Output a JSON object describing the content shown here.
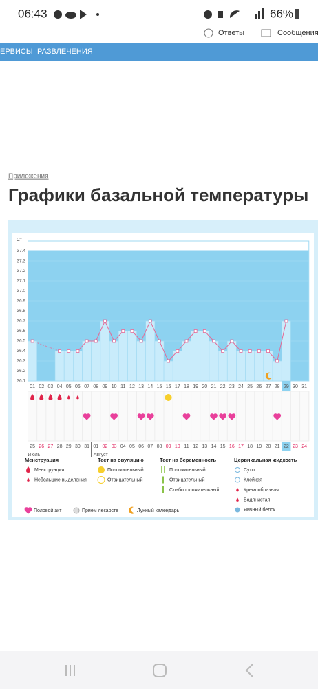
{
  "status_bar": {
    "time": "06:43",
    "battery": "66%"
  },
  "header": {
    "links": [
      "Ответы",
      "Сообщения"
    ]
  },
  "nav": {
    "items": [
      "ЕРВИСЫ",
      "РАЗВЛЕЧЕНИЯ"
    ]
  },
  "breadcrumb": "Приложения",
  "title": "Графики базальной температуры",
  "chart_data": {
    "type": "line",
    "y_label": "C°",
    "categories": [
      "01",
      "02",
      "03",
      "04",
      "05",
      "06",
      "07",
      "08",
      "09",
      "10",
      "11",
      "12",
      "13",
      "14",
      "15",
      "16",
      "17",
      "18",
      "19",
      "20",
      "21",
      "22",
      "23",
      "24",
      "25",
      "26",
      "27",
      "28",
      "29",
      "30",
      "31"
    ],
    "highlight": "29",
    "values": [
      36.5,
      null,
      null,
      36.4,
      36.4,
      36.4,
      36.5,
      36.5,
      36.7,
      36.5,
      36.6,
      36.6,
      36.5,
      36.7,
      36.5,
      36.3,
      36.4,
      36.5,
      36.6,
      36.6,
      36.5,
      36.4,
      36.5,
      36.4,
      36.4,
      36.4,
      36.4,
      36.3,
      36.7,
      null,
      null
    ],
    "ylim": [
      36.1,
      37.5
    ],
    "yticks": [
      36.1,
      36.2,
      36.3,
      36.4,
      36.5,
      36.6,
      36.7,
      36.8,
      36.9,
      {
        "value": 37,
        "label": "37.0"
      },
      37.1,
      37.2,
      37.3,
      37.4
    ],
    "color": "#e46a96",
    "bar_color": "#c9ecfb",
    "bg_color": "#8dd2f0",
    "dates": [
      "25",
      "26",
      "27",
      "28",
      "29",
      "30",
      "31",
      "01",
      "02",
      "03",
      "04",
      "05",
      "06",
      "07",
      "08",
      "09",
      "10",
      "11",
      "12",
      "13",
      "14",
      "15",
      "16",
      "17",
      "18",
      "19",
      "20",
      "21",
      "22",
      "23",
      "24"
    ],
    "dates_red": [
      false,
      true,
      true,
      false,
      false,
      false,
      false,
      false,
      true,
      true,
      false,
      false,
      false,
      false,
      false,
      true,
      true,
      false,
      false,
      false,
      false,
      false,
      true,
      true,
      false,
      false,
      false,
      false,
      false,
      true,
      true
    ],
    "dates_highlight": "22",
    "months": [
      "Июль",
      "Август"
    ],
    "legend": [
      {
        "title": "Менструация",
        "items": [
          {
            "label": "Менструация",
            "days": [
              "01",
              "02",
              "03",
              "04"
            ]
          },
          {
            "label": "Небольшие выделения",
            "days": [
              "05",
              "06"
            ]
          }
        ]
      },
      {
        "title": "Тест на овуляцию",
        "items": [
          {
            "label": "Положительный",
            "days": [
              "16"
            ]
          },
          {
            "label": "Отрицательный",
            "days": []
          }
        ]
      },
      {
        "title": "Тест на беременность",
        "items": [
          {
            "label": "Положительный",
            "days": []
          },
          {
            "label": "Отрицательный",
            "days": []
          },
          {
            "label": "Слабоположительный",
            "days": []
          }
        ]
      },
      {
        "title": "Цервикальная жидкость",
        "items": [
          {
            "label": "Сухо",
            "days": []
          },
          {
            "label": "Клейкая",
            "days": []
          },
          {
            "label": "Кремообразная",
            "days": []
          },
          {
            "label": "Водянистая",
            "days": []
          },
          {
            "label": "Яичный белок",
            "days": []
          }
        ]
      }
    ],
    "legend_bottom": [
      {
        "label": "Половой акт",
        "days": [
          "07",
          "10",
          "13",
          "14",
          "18",
          "21",
          "22",
          "23",
          "28"
        ]
      },
      {
        "label": "Прием лекарств",
        "days": []
      },
      {
        "label": "Лунный календарь",
        "days": [
          "27"
        ]
      }
    ]
  }
}
